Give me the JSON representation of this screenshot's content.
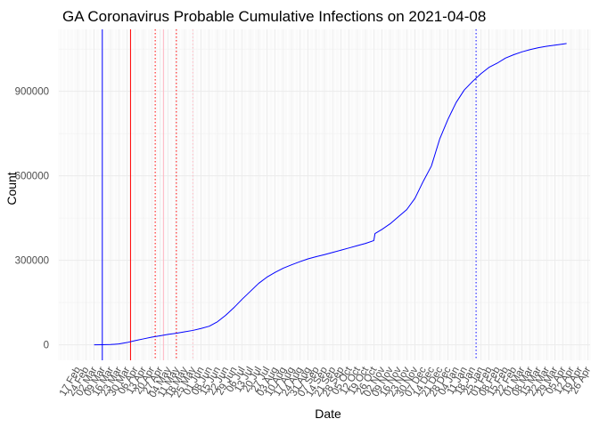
{
  "chart_data": {
    "type": "line",
    "title": "GA Coronavirus Probable Cumulative Infections on 2021-04-08",
    "xlabel": "Date",
    "ylabel": "Count",
    "x_range": [
      "2020-02-17",
      "2021-04-26"
    ],
    "ylim": [
      -55000,
      1120000
    ],
    "y_ticks": [
      0,
      300000,
      600000,
      900000
    ],
    "y_tick_labels": [
      "0",
      "300000",
      "600000",
      "900000"
    ],
    "x_ticks": [
      "2020-02-17",
      "2020-02-24",
      "2020-03-02",
      "2020-03-09",
      "2020-03-16",
      "2020-03-23",
      "2020-03-30",
      "2020-04-06",
      "2020-04-13",
      "2020-04-20",
      "2020-04-27",
      "2020-05-04",
      "2020-05-11",
      "2020-05-18",
      "2020-05-25",
      "2020-06-01",
      "2020-06-08",
      "2020-06-15",
      "2020-06-22",
      "2020-06-29",
      "2020-07-06",
      "2020-07-13",
      "2020-07-20",
      "2020-07-27",
      "2020-08-03",
      "2020-08-10",
      "2020-08-17",
      "2020-08-24",
      "2020-08-31",
      "2020-09-07",
      "2020-09-14",
      "2020-09-21",
      "2020-09-28",
      "2020-10-05",
      "2020-10-12",
      "2020-10-19",
      "2020-10-26",
      "2020-11-02",
      "2020-11-09",
      "2020-11-16",
      "2020-11-23",
      "2020-11-30",
      "2020-12-07",
      "2020-12-14",
      "2020-12-21",
      "2020-12-28",
      "2021-01-04",
      "2021-01-11",
      "2021-01-18",
      "2021-01-25",
      "2021-02-01",
      "2021-02-08",
      "2021-02-15",
      "2021-02-22",
      "2021-03-01",
      "2021-03-08",
      "2021-03-15",
      "2021-03-22",
      "2021-03-29",
      "2021-04-05",
      "2021-04-12",
      "2021-04-19",
      "2021-04-26"
    ],
    "x_tick_labels": [
      "17 Feb",
      "24 Feb",
      "02 Mar",
      "09 Mar",
      "16 Mar",
      "23 Mar",
      "30 Mar",
      "06 Apr",
      "13 Apr",
      "20 Apr",
      "27 Apr",
      "04 May",
      "11 May",
      "18 May",
      "25 May",
      "01 Jun",
      "08 Jun",
      "15 Jun",
      "22 Jun",
      "29 Jun",
      "06 Jul",
      "13 Jul",
      "20 Jul",
      "27 Jul",
      "03 Aug",
      "10 Aug",
      "17 Aug",
      "24 Aug",
      "31 Aug",
      "07 Sep",
      "14 Sep",
      "21 Sep",
      "28 Sep",
      "05 Oct",
      "12 Oct",
      "19 Oct",
      "26 Oct",
      "02 Nov",
      "09 Nov",
      "16 Nov",
      "23 Nov",
      "30 Nov",
      "07 Dec",
      "14 Dec",
      "21 Dec",
      "28 Dec",
      "04 Jan",
      "11 Jan",
      "18 Jan",
      "25 Jan",
      "01 Feb",
      "08 Feb",
      "15 Feb",
      "22 Feb",
      "01 Mar",
      "08 Mar",
      "15 Mar",
      "22 Mar",
      "29 Mar",
      "05 Apr",
      "12 Apr",
      "19 Apr",
      "26 Apr"
    ],
    "grid": true,
    "series": [
      {
        "color": "#0000ff",
        "x": [
          "2020-03-02",
          "2020-03-09",
          "2020-03-16",
          "2020-03-23",
          "2020-03-30",
          "2020-04-06",
          "2020-04-13",
          "2020-04-20",
          "2020-04-27",
          "2020-05-04",
          "2020-05-11",
          "2020-05-18",
          "2020-05-25",
          "2020-06-01",
          "2020-06-08",
          "2020-06-15",
          "2020-06-22",
          "2020-06-29",
          "2020-07-06",
          "2020-07-13",
          "2020-07-20",
          "2020-07-27",
          "2020-08-03",
          "2020-08-10",
          "2020-08-17",
          "2020-08-24",
          "2020-08-31",
          "2020-09-07",
          "2020-09-14",
          "2020-09-21",
          "2020-09-28",
          "2020-10-05",
          "2020-10-12",
          "2020-10-19",
          "2020-10-26",
          "2020-10-27",
          "2020-11-02",
          "2020-11-09",
          "2020-11-16",
          "2020-11-23",
          "2020-11-30",
          "2020-12-07",
          "2020-12-14",
          "2020-12-21",
          "2020-12-28",
          "2021-01-04",
          "2021-01-11",
          "2021-01-18",
          "2021-01-25",
          "2021-02-01",
          "2021-02-08",
          "2021-02-15",
          "2021-02-22",
          "2021-03-01",
          "2021-03-08",
          "2021-03-15",
          "2021-03-22",
          "2021-03-29",
          "2021-04-05",
          "2021-04-08"
        ],
        "y": [
          0,
          200,
          1000,
          3000,
          8000,
          15000,
          21000,
          27000,
          32000,
          37000,
          41000,
          46000,
          51000,
          58000,
          66000,
          82000,
          105000,
          132000,
          162000,
          190000,
          218000,
          240000,
          257000,
          272000,
          284000,
          295000,
          305000,
          313000,
          320000,
          328000,
          336000,
          344000,
          352000,
          360000,
          370000,
          395000,
          410000,
          430000,
          455000,
          480000,
          520000,
          580000,
          635000,
          730000,
          800000,
          860000,
          905000,
          935000,
          962000,
          985000,
          1000000,
          1018000,
          1030000,
          1040000,
          1048000,
          1055000,
          1060000,
          1064000,
          1068000,
          1070000
        ]
      }
    ],
    "vertical_lines": [
      {
        "x": "2020-03-09",
        "color": "#0000ff",
        "style": "solid"
      },
      {
        "x": "2020-04-02",
        "color": "#ff0000",
        "style": "solid"
      },
      {
        "x": "2020-04-23",
        "color": "#ff0000",
        "style": "dotted"
      },
      {
        "x": "2020-04-30",
        "color": "#ffb6c1",
        "style": "solid"
      },
      {
        "x": "2020-05-11",
        "color": "#ff0000",
        "style": "dotted"
      },
      {
        "x": "2020-05-25",
        "color": "#ffb6c1",
        "style": "dotted"
      },
      {
        "x": "2021-01-21",
        "color": "#0000ff",
        "style": "dotted"
      }
    ]
  }
}
